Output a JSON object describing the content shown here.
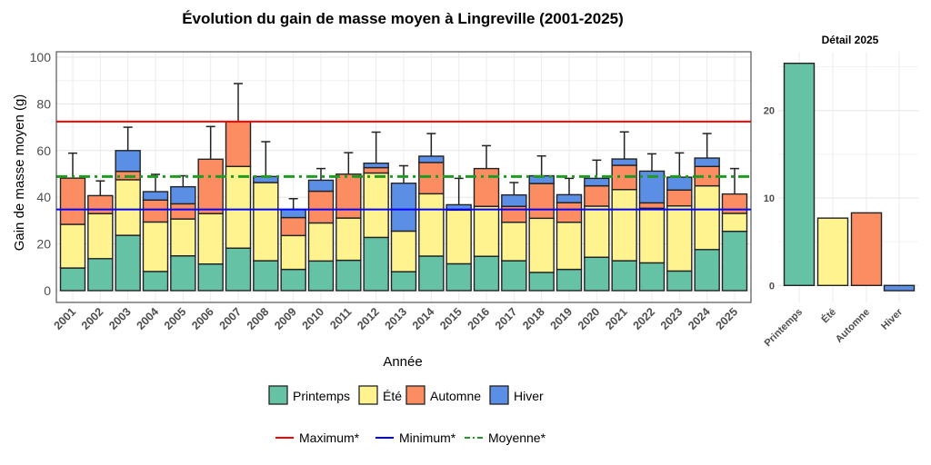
{
  "chart_data": [
    {
      "type": "bar",
      "stacked": true,
      "title": "Évolution du gain de masse moyen à Lingreville (2001-2025)",
      "xlabel": "Année",
      "ylabel": "Gain de masse moyen (g)",
      "ylim": [
        -5,
        102
      ],
      "yticks": [
        0,
        20,
        40,
        60,
        80,
        100
      ],
      "grid": true,
      "categories": [
        "2001",
        "2002",
        "2003",
        "2004",
        "2005",
        "2006",
        "2007",
        "2008",
        "2009",
        "2010",
        "2011",
        "2012",
        "2013",
        "2014",
        "2015",
        "2016",
        "2017",
        "2018",
        "2019",
        "2020",
        "2021",
        "2022",
        "2023",
        "2024",
        "2025"
      ],
      "series": [
        {
          "name": "Printemps",
          "color": "#66c2a5",
          "values": [
            9.7,
            13.7,
            23.7,
            8.2,
            14.9,
            11.4,
            18.2,
            12.8,
            9.1,
            12.7,
            13.0,
            22.8,
            8.1,
            14.8,
            11.5,
            14.7,
            12.8,
            7.8,
            9.1,
            14.3,
            12.8,
            11.9,
            8.4,
            17.6,
            25.4
          ]
        },
        {
          "name": "Été",
          "color": "#fff38f",
          "values": [
            18.7,
            19.3,
            23.8,
            21.2,
            15.8,
            21.6,
            35.0,
            33.5,
            14.5,
            16.3,
            18.1,
            27.6,
            17.4,
            26.7,
            23.0,
            21.4,
            16.5,
            23.2,
            20.2,
            21.9,
            30.5,
            23.4,
            27.9,
            27.3,
            7.7
          ]
        },
        {
          "name": "Automne",
          "color": "#fc8d62",
          "values": [
            19.8,
            7.7,
            3.6,
            9.4,
            6.5,
            23.3,
            19.2,
            0,
            7.7,
            13.6,
            18.8,
            2.3,
            0,
            13.4,
            0,
            16.2,
            6.8,
            14.9,
            8.4,
            8.7,
            10.4,
            2.3,
            6.8,
            8.3,
            8.3
          ]
        },
        {
          "name": "Hiver",
          "color": "#5b8fe6",
          "values": [
            0,
            0,
            8.9,
            3.6,
            7.3,
            0,
            0,
            2.6,
            3.5,
            4.7,
            0,
            1.9,
            20.5,
            2.7,
            2.3,
            0,
            4.9,
            3.3,
            3.4,
            3.2,
            2.7,
            13.6,
            5.5,
            3.6,
            -0.6
          ]
        }
      ],
      "error_bar_upper": [
        58.9,
        47.0,
        70.0,
        49.8,
        49.2,
        70.3,
        88.7,
        63.8,
        39.4,
        52.3,
        59.1,
        67.9,
        53.5,
        67.3,
        48.1,
        62.1,
        46.3,
        57.7,
        48.1,
        55.9,
        68.0,
        58.6,
        59.0,
        67.3,
        52.3
      ],
      "reference_lines": [
        {
          "name": "Maximum*",
          "value": 72.4,
          "color": "#ff0000",
          "style": "solid"
        },
        {
          "name": "Minimum*",
          "value": 34.8,
          "color": "#0000ff",
          "style": "solid"
        },
        {
          "name": "Moyenne*",
          "value": 48.9,
          "color": "#229922",
          "style": "dotdash"
        }
      ],
      "legend": {
        "placement": "bottom",
        "items": [
          "Printemps",
          "Été",
          "Automne",
          "Hiver"
        ],
        "line_items": [
          "Maximum*",
          "Minimum*",
          "Moyenne*"
        ]
      }
    },
    {
      "type": "bar",
      "title": "Détail 2025",
      "categories": [
        "Printemps",
        "Été",
        "Automne",
        "Hiver"
      ],
      "values": [
        25.4,
        7.7,
        8.3,
        -0.6
      ],
      "colors": [
        "#66c2a5",
        "#fff38f",
        "#fc8d62",
        "#5b8fe6"
      ],
      "ylim": [
        -1.9,
        26.7
      ],
      "yticks": [
        0,
        10,
        20
      ],
      "grid": true
    }
  ]
}
